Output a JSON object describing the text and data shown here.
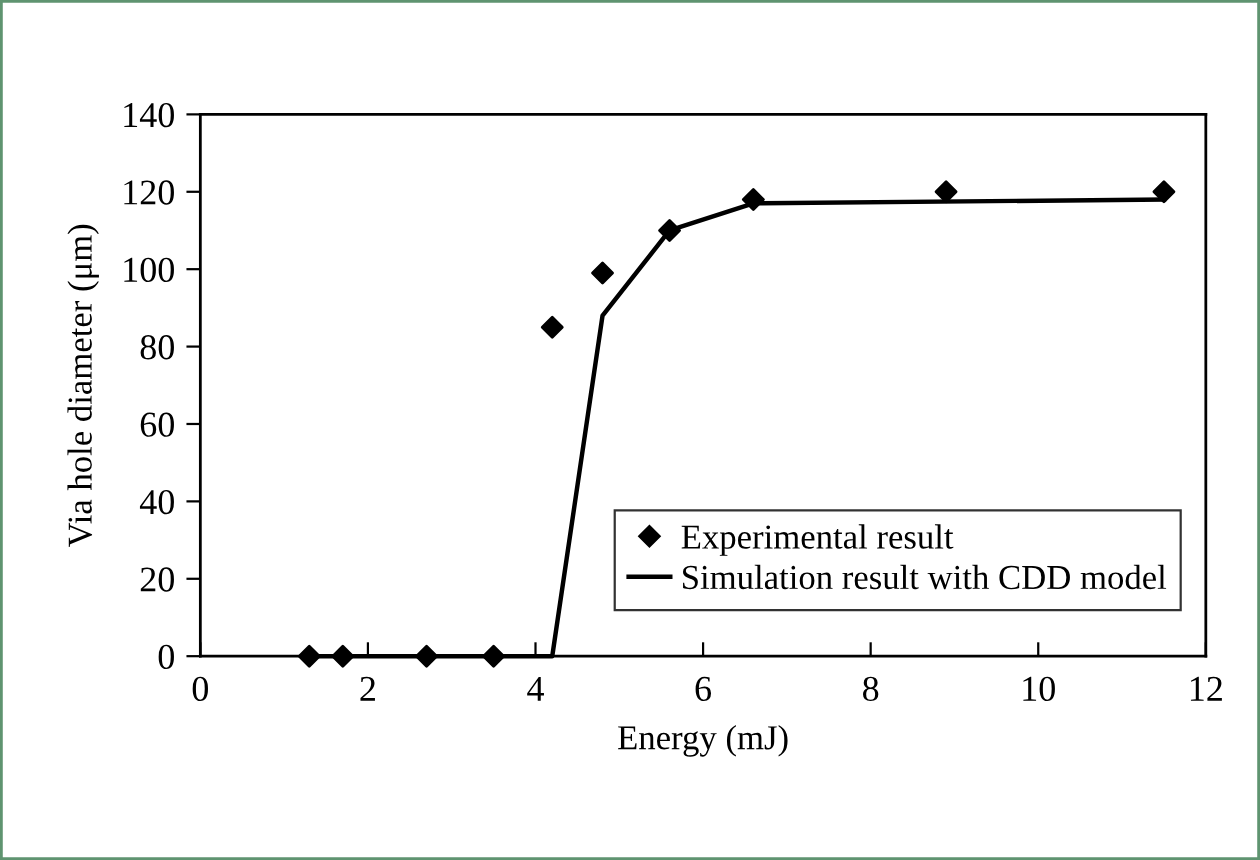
{
  "chart_data": {
    "type": "scatter",
    "xlabel": "Energy (mJ)",
    "ylabel": "Via hole diameter (μm)",
    "xlim": [
      0,
      12
    ],
    "xticks": [
      0,
      2,
      4,
      6,
      8,
      10,
      12
    ],
    "ylim": [
      0,
      140
    ],
    "yticks": [
      0,
      20,
      40,
      60,
      80,
      100,
      120,
      140
    ],
    "grid": false,
    "legend": "bottom right",
    "series": [
      {
        "name": "Experimental result",
        "marker": "diamond",
        "color": "#000000",
        "x": [
          1.3,
          1.7,
          2.7,
          3.5,
          4.2,
          4.8,
          5.6,
          6.6,
          8.9,
          11.5
        ],
        "values": [
          0,
          0,
          0,
          0,
          85,
          99,
          110,
          118,
          120,
          120
        ]
      },
      {
        "name": "Simulation result with CDD model",
        "type": "line",
        "line_style": "solid",
        "color": "#000000",
        "x": [
          1.3,
          4.2,
          4.8,
          5.6,
          6.6,
          11.5
        ],
        "values": [
          0,
          0,
          88,
          110,
          117,
          118
        ]
      }
    ]
  }
}
